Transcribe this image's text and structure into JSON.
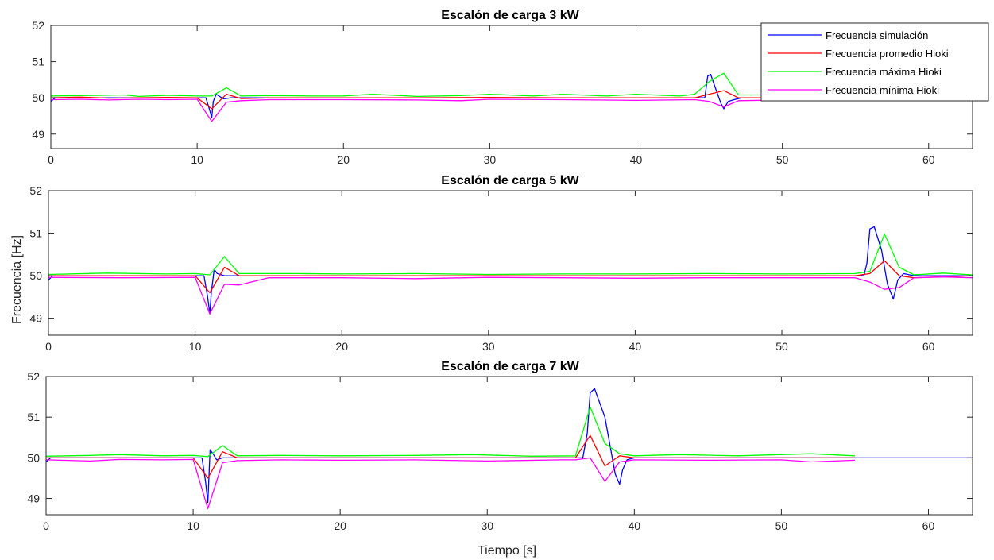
{
  "figure": {
    "ylabel": "Frecuencia [Hz]",
    "xlabel": "Tiempo [s]"
  },
  "legend": {
    "placement": "top-right of first panel",
    "entries": [
      {
        "label": "Frecuencia simulación",
        "color": "#0000ff"
      },
      {
        "label": "Frecuencia promedio Hioki",
        "color": "#ff0000"
      },
      {
        "label": "Frecuencia máxima Hioki",
        "color": "#00ff00"
      },
      {
        "label": "Frecuencia mínima Hioki",
        "color": "#ff00ff"
      }
    ]
  },
  "chart_data": [
    {
      "type": "line",
      "title": "Escalón de carga 3 kW",
      "xlim": [
        0,
        63
      ],
      "ylim": [
        48.6,
        52
      ],
      "xticks": [
        0,
        10,
        20,
        30,
        40,
        50,
        60
      ],
      "yticks": [
        49,
        50,
        51,
        52
      ],
      "grid": false,
      "series": [
        {
          "name": "Frecuencia simulación",
          "color": "#0000ff",
          "x": [
            0,
            0.3,
            5,
            10,
            10.6,
            10.9,
            11.0,
            11.1,
            11.3,
            11.5,
            11.8,
            12.3,
            15,
            20,
            25,
            30,
            35,
            40,
            44.7,
            44.9,
            45.1,
            45.4,
            45.8,
            46.0,
            46.3,
            46.7,
            47.2,
            50,
            55,
            60,
            63
          ],
          "y": [
            49.9,
            50.0,
            50.0,
            50.0,
            50.0,
            49.6,
            49.45,
            49.9,
            50.1,
            50.05,
            49.97,
            50.0,
            50.0,
            50.0,
            50.0,
            50.0,
            50.0,
            50.0,
            50.0,
            50.6,
            50.65,
            50.3,
            49.85,
            49.7,
            49.9,
            49.95,
            50.0,
            50.0,
            50.0,
            50.0,
            50.0
          ]
        },
        {
          "name": "Frecuencia promedio Hioki",
          "color": "#ff0000",
          "x": [
            0,
            2,
            4,
            6,
            8,
            10,
            11,
            12,
            13,
            15,
            20,
            25,
            30,
            35,
            40,
            44,
            45,
            46,
            47,
            50,
            53
          ],
          "y": [
            50.0,
            50.02,
            49.99,
            50.0,
            50.01,
            50.0,
            49.7,
            50.1,
            49.98,
            50.0,
            50.0,
            50.0,
            50.01,
            50.0,
            50.0,
            50.0,
            50.1,
            50.2,
            50.0,
            50.0,
            50.0
          ]
        },
        {
          "name": "Frecuencia máxima Hioki",
          "color": "#00ff00",
          "x": [
            0,
            2,
            5,
            6,
            8,
            10,
            11,
            12,
            13,
            15,
            18,
            20,
            22,
            25,
            28,
            30,
            33,
            35,
            38,
            40,
            43,
            44,
            45,
            46,
            47,
            50,
            53
          ],
          "y": [
            50.05,
            50.06,
            50.08,
            50.04,
            50.07,
            50.05,
            50.05,
            50.28,
            50.05,
            50.06,
            50.05,
            50.05,
            50.1,
            50.04,
            50.06,
            50.1,
            50.05,
            50.1,
            50.05,
            50.1,
            50.05,
            50.1,
            50.45,
            50.68,
            50.08,
            50.08,
            50.08
          ]
        },
        {
          "name": "Frecuencia mínima Hioki",
          "color": "#ff00ff",
          "x": [
            0,
            2,
            4,
            6,
            8,
            10,
            11,
            12,
            13,
            15,
            20,
            25,
            28,
            30,
            35,
            40,
            44,
            45,
            46,
            47,
            50,
            53
          ],
          "y": [
            49.95,
            49.96,
            49.94,
            49.96,
            49.95,
            49.96,
            49.35,
            49.88,
            49.92,
            49.95,
            49.95,
            49.94,
            49.92,
            49.96,
            49.95,
            49.93,
            49.95,
            49.9,
            49.75,
            49.92,
            49.94,
            49.95
          ]
        }
      ]
    },
    {
      "type": "line",
      "title": "Escalón de carga 5 kW",
      "xlim": [
        0,
        63
      ],
      "ylim": [
        48.6,
        52
      ],
      "xticks": [
        0,
        10,
        20,
        30,
        40,
        50,
        60
      ],
      "yticks": [
        49,
        50,
        51,
        52
      ],
      "grid": false,
      "series": [
        {
          "name": "Frecuencia simulación",
          "color": "#0000ff",
          "x": [
            0,
            0.3,
            5,
            10,
            10.6,
            10.85,
            11.0,
            11.1,
            11.3,
            11.5,
            12.0,
            15,
            20,
            30,
            40,
            50,
            55.6,
            55.8,
            56.0,
            56.3,
            56.8,
            57.2,
            57.6,
            57.9,
            58.3,
            59,
            63
          ],
          "y": [
            49.9,
            50.0,
            50.0,
            50.0,
            50.0,
            49.5,
            49.1,
            49.6,
            50.15,
            50.05,
            50.0,
            50.0,
            50.0,
            50.0,
            50.0,
            50.0,
            50.0,
            50.3,
            51.1,
            51.15,
            50.6,
            49.8,
            49.45,
            49.9,
            50.05,
            50.0,
            50.0
          ]
        },
        {
          "name": "Frecuencia promedio Hioki",
          "color": "#ff0000",
          "x": [
            0,
            5,
            10,
            11,
            12,
            13,
            15,
            20,
            30,
            40,
            50,
            55,
            56,
            57,
            58,
            59,
            63
          ],
          "y": [
            50.0,
            50.0,
            50.0,
            49.6,
            50.2,
            50.0,
            50.0,
            50.0,
            50.0,
            50.0,
            50.0,
            50.0,
            50.05,
            50.35,
            50.0,
            49.95,
            50.0
          ]
        },
        {
          "name": "Frecuencia máxima Hioki",
          "color": "#00ff00",
          "x": [
            0,
            4,
            8,
            10,
            11,
            12,
            13,
            17,
            20,
            25,
            30,
            35,
            40,
            45,
            50,
            55,
            56,
            57,
            58,
            59,
            61,
            63
          ],
          "y": [
            50.03,
            50.06,
            50.04,
            50.05,
            50.02,
            50.45,
            50.05,
            50.05,
            50.04,
            50.05,
            50.03,
            50.04,
            50.04,
            50.05,
            50.04,
            50.05,
            50.1,
            50.98,
            50.2,
            50.02,
            50.06,
            50.02
          ]
        },
        {
          "name": "Frecuencia mínima Hioki",
          "color": "#ff00ff",
          "x": [
            0,
            5,
            10,
            11,
            12,
            13,
            15,
            20,
            25,
            30,
            35,
            40,
            45,
            50,
            55,
            56,
            57,
            58,
            59,
            61,
            63
          ],
          "y": [
            49.96,
            49.95,
            49.96,
            49.1,
            49.8,
            49.78,
            49.95,
            49.95,
            49.93,
            49.96,
            49.95,
            49.94,
            49.95,
            49.95,
            49.95,
            49.85,
            49.68,
            49.72,
            49.95,
            49.97,
            49.95
          ]
        }
      ]
    },
    {
      "type": "line",
      "title": "Escalón de carga 7 kW",
      "xlim": [
        0,
        63
      ],
      "ylim": [
        48.6,
        52
      ],
      "xticks": [
        0,
        10,
        20,
        30,
        40,
        50,
        60
      ],
      "yticks": [
        49,
        50,
        51,
        52
      ],
      "grid": false,
      "series": [
        {
          "name": "Frecuencia simulación",
          "color": "#0000ff",
          "x": [
            0,
            0.3,
            5,
            10,
            10.6,
            10.85,
            11.0,
            11.15,
            11.35,
            11.6,
            12,
            15,
            20,
            30,
            36.5,
            36.8,
            37.0,
            37.3,
            38.0,
            38.7,
            39.0,
            39.2,
            39.5,
            40,
            50,
            55,
            60,
            63
          ],
          "y": [
            49.9,
            50.0,
            50.0,
            50.0,
            50.0,
            49.4,
            48.9,
            50.2,
            50.1,
            49.95,
            50.0,
            50.0,
            50.0,
            50.0,
            50.0,
            50.6,
            51.6,
            51.7,
            51.0,
            49.6,
            49.35,
            49.7,
            49.95,
            50.0,
            50.0,
            50.0,
            50.0,
            50.0
          ]
        },
        {
          "name": "Frecuencia promedio Hioki",
          "color": "#ff0000",
          "x": [
            0,
            5,
            10,
            11,
            12,
            13,
            15,
            20,
            30,
            36,
            37,
            38,
            39,
            40,
            45,
            50,
            55
          ],
          "y": [
            50.0,
            50.0,
            50.0,
            49.5,
            50.15,
            50.0,
            50.0,
            50.0,
            50.0,
            50.0,
            50.55,
            49.8,
            50.05,
            50.0,
            50.0,
            50.0,
            50.0
          ]
        },
        {
          "name": "Frecuencia máxima Hioki",
          "color": "#00ff00",
          "x": [
            0,
            3,
            5,
            8,
            10,
            11,
            12,
            13,
            16,
            20,
            25,
            29,
            33,
            36,
            37,
            38,
            39,
            40,
            43,
            47,
            52,
            55
          ],
          "y": [
            50.04,
            50.06,
            50.08,
            50.05,
            50.06,
            50.03,
            50.3,
            50.05,
            50.06,
            50.05,
            50.06,
            50.08,
            50.04,
            50.05,
            51.25,
            50.35,
            50.1,
            50.05,
            50.08,
            50.05,
            50.1,
            50.05
          ]
        },
        {
          "name": "Frecuencia mínima Hioki",
          "color": "#ff00ff",
          "x": [
            0,
            3,
            5,
            8,
            10,
            11,
            12,
            13,
            16,
            20,
            25,
            30,
            35,
            36,
            37,
            38,
            39,
            40,
            45,
            50,
            52,
            55
          ],
          "y": [
            49.95,
            49.92,
            49.96,
            49.95,
            49.96,
            48.75,
            49.88,
            49.93,
            49.95,
            49.94,
            49.95,
            49.92,
            49.95,
            49.95,
            50.0,
            49.42,
            49.9,
            49.95,
            49.94,
            49.95,
            49.9,
            49.94
          ]
        }
      ]
    }
  ]
}
